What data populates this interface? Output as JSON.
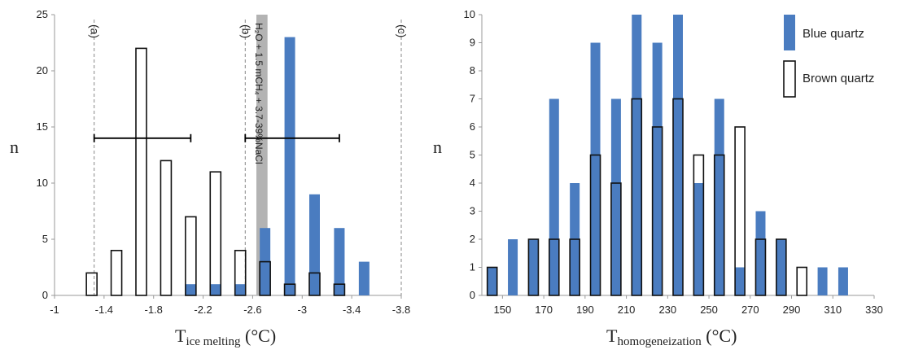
{
  "chart_data": [
    {
      "type": "bar",
      "x_values": [
        -1.3,
        -1.5,
        -1.7,
        -1.9,
        -2.1,
        -2.3,
        -2.5,
        -2.7,
        -2.9,
        -3.1,
        -3.3,
        -3.5
      ],
      "x_ticks": [
        -1,
        -1.4,
        -1.8,
        -2.2,
        -2.6,
        -3,
        -3.4,
        -3.8
      ],
      "x_tick_labels": [
        "-1",
        "-1.4",
        "-1.8",
        "-2.2",
        "-2.6",
        "-3",
        "-3.4",
        "-3.8"
      ],
      "y_ticks": [
        0,
        5,
        10,
        15,
        20,
        25
      ],
      "xlim": [
        -1,
        -3.8
      ],
      "ylim": [
        0,
        25
      ],
      "ylabel": "n",
      "xlabel_main": "T",
      "xlabel_sub": "ice melting",
      "xlabel_unit": " (°C)",
      "series": [
        {
          "name": "Blue quartz",
          "values": [
            0,
            0,
            0,
            0,
            1,
            1,
            1,
            6,
            23,
            9,
            6,
            3
          ]
        },
        {
          "name": "Brown quartz",
          "values": [
            2,
            4,
            22,
            12,
            7,
            11,
            4,
            3,
            1,
            2,
            1,
            0
          ]
        }
      ],
      "reference_lines": [
        {
          "label": "(a)",
          "x": -1.32
        },
        {
          "label": "(b)",
          "x": -2.54
        },
        {
          "label": "(c)",
          "x": -3.8
        }
      ],
      "shaded_range": {
        "from": -2.63,
        "to": -2.72,
        "label": "H₂O + 1.5 mCH₄ + 3.7-39%NaCl"
      },
      "error_bars": [
        {
          "y": 14,
          "x_from": -1.32,
          "x_to": -2.1
        },
        {
          "y": 14,
          "x_from": -2.54,
          "x_to": -3.3
        }
      ]
    },
    {
      "type": "bar",
      "x_values": [
        145,
        155,
        165,
        175,
        185,
        195,
        205,
        215,
        225,
        235,
        245,
        255,
        265,
        275,
        285,
        295,
        305,
        315
      ],
      "x_ticks": [
        150,
        170,
        190,
        210,
        230,
        250,
        270,
        290,
        310,
        330
      ],
      "y_ticks": [
        0,
        1,
        2,
        3,
        4,
        5,
        6,
        7,
        8,
        9,
        10
      ],
      "xlim": [
        140,
        330
      ],
      "ylim": [
        0,
        10
      ],
      "ylabel": "n",
      "xlabel_main": "T",
      "xlabel_sub": "homogeneization",
      "xlabel_unit": " (°C)",
      "series": [
        {
          "name": "Blue quartz",
          "values": [
            1,
            2,
            2,
            7,
            4,
            9,
            7,
            10,
            9,
            10,
            4,
            7,
            1,
            3,
            2,
            0,
            1,
            1
          ]
        },
        {
          "name": "Brown quartz",
          "values": [
            1,
            0,
            2,
            2,
            2,
            5,
            4,
            7,
            6,
            7,
            5,
            5,
            6,
            2,
            2,
            1,
            0,
            0
          ]
        }
      ],
      "legend": [
        "Blue quartz",
        "Brown quartz"
      ],
      "legend_position": "top-right"
    }
  ],
  "colors": {
    "blue": "#4a7cc0",
    "outline": "#111111",
    "shade": "#b3b3b3",
    "grid": "#999999"
  }
}
